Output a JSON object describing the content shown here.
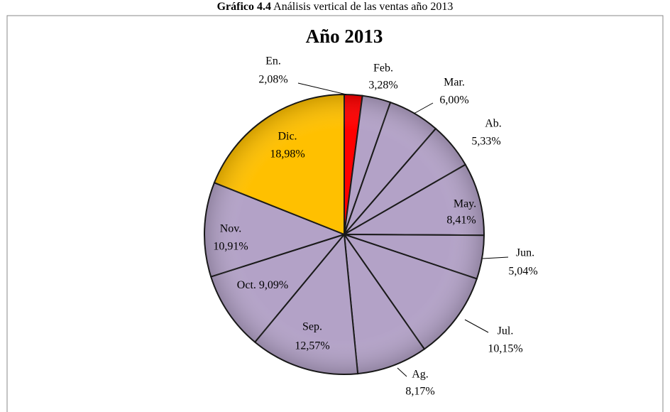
{
  "caption": {
    "label": "Gráfico 4.4",
    "text": "Análisis vertical de las ventas año 2013"
  },
  "chart_data": {
    "type": "pie",
    "title": "Año 2013",
    "categories": [
      "En.",
      "Feb.",
      "Mar.",
      "Ab.",
      "May.",
      "Jun.",
      "Jul.",
      "Ag.",
      "Sep.",
      "Oct.",
      "Nov.",
      "Dic."
    ],
    "values": [
      2.08,
      3.28,
      6.0,
      5.33,
      8.41,
      5.04,
      10.15,
      8.17,
      12.57,
      9.09,
      10.91,
      18.98
    ],
    "value_labels": [
      "2,08%",
      "3,28%",
      "6,00%",
      "5,33%",
      "8,41%",
      "5,04%",
      "10,15%",
      "8,17%",
      "12,57%",
      "9,09%",
      "10,91%",
      "18,98%"
    ],
    "colors": [
      "#ff0000",
      "#b3a2c7",
      "#b3a2c7",
      "#b3a2c7",
      "#b3a2c7",
      "#b3a2c7",
      "#b3a2c7",
      "#b3a2c7",
      "#b3a2c7",
      "#b3a2c7",
      "#b3a2c7",
      "#ffc000"
    ]
  }
}
